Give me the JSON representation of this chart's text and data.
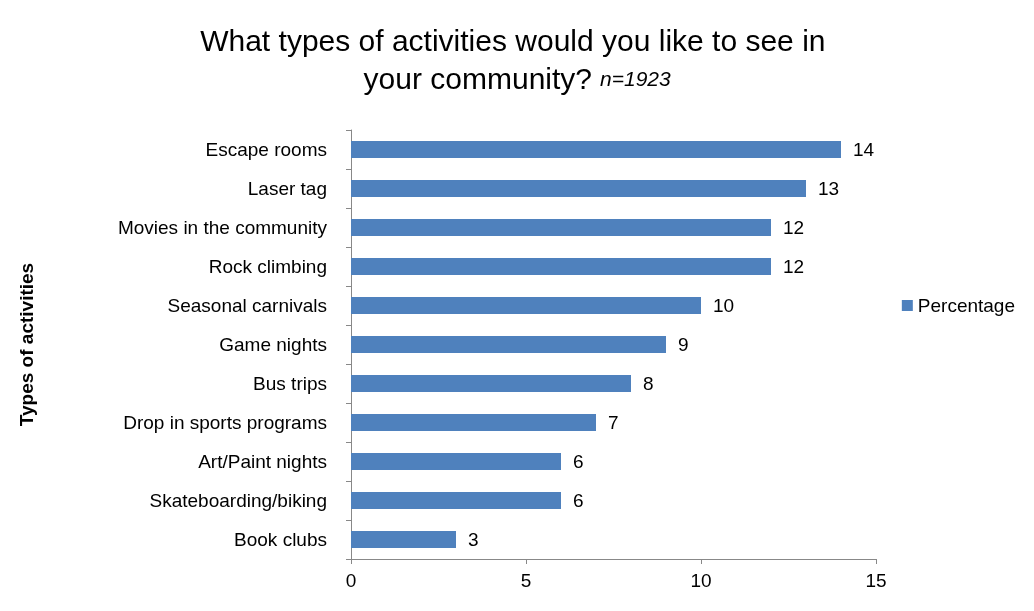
{
  "chart_data": {
    "type": "bar",
    "orientation": "horizontal",
    "title": "What types of activities would you like to see in your community?",
    "subtitle": "n=1923",
    "ylabel": "Types of activities",
    "categories": [
      "Escape rooms",
      "Laser tag",
      "Movies in the community",
      "Rock climbing",
      "Seasonal carnivals",
      "Game nights",
      "Bus trips",
      "Drop in sports programs",
      "Art/Paint nights",
      "Skateboarding/biking",
      "Book clubs"
    ],
    "series": [
      {
        "name": "Percentage",
        "color": "#4f81bd",
        "values": [
          14,
          13,
          12,
          12,
          10,
          9,
          8,
          7,
          6,
          6,
          3
        ]
      }
    ],
    "xlim": [
      0,
      15
    ],
    "xticks": [
      0,
      5,
      10,
      15
    ],
    "grid": false,
    "legend": "right",
    "data_labels": true
  }
}
